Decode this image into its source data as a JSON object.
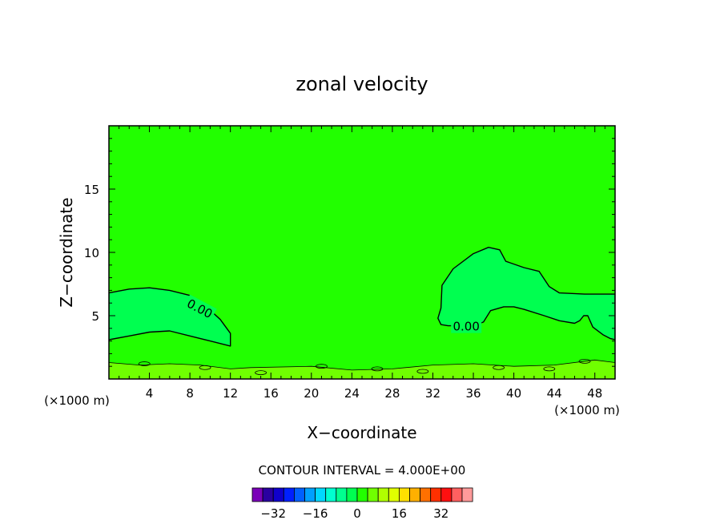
{
  "chart_data": {
    "type": "contour",
    "title": "zonal velocity",
    "xlabel": "X−coordinate",
    "ylabel": "Z−coordinate",
    "x_unit": "(×1000 m)",
    "y_unit": "(×1000 m)",
    "xlim": [
      0,
      50
    ],
    "ylim": [
      0,
      20
    ],
    "x_ticks": [
      4,
      8,
      12,
      16,
      20,
      24,
      28,
      32,
      36,
      40,
      44,
      48
    ],
    "y_ticks": [
      5,
      10,
      15
    ],
    "contour_interval_text": "CONTOUR INTERVAL = 4.000E+00",
    "contour_interval": 4.0,
    "contour_labels": [
      "0.00",
      "0.00"
    ],
    "background_color": "#22ff00",
    "colorbar": {
      "colors": [
        "#7a00b8",
        "#2a00a0",
        "#1000cc",
        "#0020ff",
        "#0060ff",
        "#00a0ff",
        "#00d8ff",
        "#00ffd0",
        "#00ff90",
        "#00ff50",
        "#22ff00",
        "#70ff00",
        "#b0ff00",
        "#e0ff00",
        "#ffe000",
        "#ffb000",
        "#ff7000",
        "#ff3000",
        "#ff1010",
        "#ff6060",
        "#ff9a9a"
      ],
      "tick_values": [
        -32,
        -16,
        0,
        16,
        32
      ],
      "tick_labels": [
        "−32",
        "−16",
        "0",
        "16",
        "32"
      ]
    },
    "regions": [
      {
        "name": "left-negative-region",
        "value": -2,
        "color": "#00ff50",
        "outline": [
          [
            0,
            6.8
          ],
          [
            2,
            7.1
          ],
          [
            4,
            7.2
          ],
          [
            6,
            7.0
          ],
          [
            8,
            6.6
          ],
          [
            9.5,
            5.8
          ],
          [
            11,
            4.7
          ],
          [
            12,
            3.6
          ],
          [
            12,
            2.6
          ],
          [
            10,
            3.0
          ],
          [
            8,
            3.4
          ],
          [
            6,
            3.8
          ],
          [
            4,
            3.7
          ],
          [
            2,
            3.4
          ],
          [
            0,
            3.1
          ]
        ]
      },
      {
        "name": "right-negative-region",
        "value": -2,
        "color": "#00ff50",
        "outline": [
          [
            32.8,
            5.6
          ],
          [
            32.9,
            7.4
          ],
          [
            34,
            8.7
          ],
          [
            36,
            9.9
          ],
          [
            37.5,
            10.4
          ],
          [
            38.6,
            10.2
          ],
          [
            39.2,
            9.3
          ],
          [
            41,
            8.8
          ],
          [
            42.5,
            8.5
          ],
          [
            43.5,
            7.3
          ],
          [
            44.5,
            6.8
          ],
          [
            47,
            6.7
          ],
          [
            50,
            6.7
          ],
          [
            50,
            3.1
          ],
          [
            49.5,
            3.2
          ],
          [
            48.8,
            3.5
          ],
          [
            47.8,
            4.1
          ],
          [
            47.3,
            5.0
          ],
          [
            46.9,
            5.0
          ],
          [
            46.5,
            4.6
          ],
          [
            46,
            4.4
          ],
          [
            44.5,
            4.6
          ],
          [
            43,
            5.0
          ],
          [
            41,
            5.5
          ],
          [
            40,
            5.7
          ],
          [
            39,
            5.7
          ],
          [
            37.7,
            5.4
          ],
          [
            37,
            4.5
          ],
          [
            36,
            4.2
          ],
          [
            35,
            4.2
          ],
          [
            34.3,
            4.2
          ],
          [
            33.5,
            4.2
          ],
          [
            32.8,
            4.3
          ],
          [
            32.5,
            4.8
          ]
        ]
      },
      {
        "name": "near-surface-positive-band",
        "value": 2,
        "color": "#70ff00",
        "outline": [
          [
            0,
            1.3
          ],
          [
            3,
            1.1
          ],
          [
            6,
            1.2
          ],
          [
            9,
            1.1
          ],
          [
            12,
            0.8
          ],
          [
            14,
            0.9
          ],
          [
            20,
            1.0
          ],
          [
            24,
            0.7
          ],
          [
            28,
            0.8
          ],
          [
            32,
            1.1
          ],
          [
            36,
            1.2
          ],
          [
            40,
            1.0
          ],
          [
            44,
            1.1
          ],
          [
            48,
            1.5
          ],
          [
            50,
            1.3
          ],
          [
            50,
            0
          ],
          [
            0,
            0
          ]
        ]
      }
    ]
  }
}
